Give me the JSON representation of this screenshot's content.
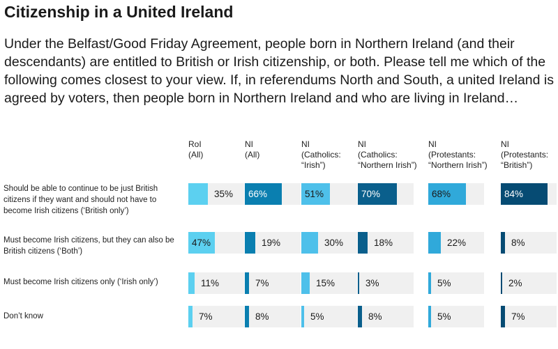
{
  "title": "Citizenship in a United Ireland",
  "subtitle": "Under the Belfast/Good Friday Agreement, people born in Northern Ireland (and their descendants) are entitled to British or Irish citizenship, or both. Please tell me which of the following comes closest to your view. If, in referendums North and South, a united Ireland is agreed by voters, then people born in Northern Ireland and who are living in Ireland…",
  "chart_data": {
    "type": "bar",
    "columns": [
      {
        "line1": "RoI",
        "line2": "(All)",
        "color": "#5cd0f0",
        "values": [
          35,
          47,
          11,
          7
        ]
      },
      {
        "line1": "NI",
        "line2": "(All)",
        "color": "#0a7fb0",
        "values": [
          66,
          19,
          7,
          8
        ]
      },
      {
        "line1": "NI",
        "line2": "(Catholics:",
        "line3": "“Irish”)",
        "color": "#4ec0ea",
        "values": [
          51,
          30,
          15,
          5
        ]
      },
      {
        "line1": "NI",
        "line2": "(Catholics:",
        "line3": "“Northern Irish”)",
        "color": "#0a5f8c",
        "values": [
          70,
          18,
          3,
          8
        ]
      },
      {
        "line1": "NI",
        "line2": "(Protestants:",
        "line3": "“Northern Irish”)",
        "color": "#30a9da",
        "values": [
          68,
          22,
          5,
          5
        ]
      },
      {
        "line1": "NI",
        "line2": "(Protestants:",
        "line3": "“British”)",
        "color": "#064b73",
        "values": [
          84,
          8,
          2,
          7
        ]
      }
    ],
    "rows": [
      "Should be able to continue to be just British citizens if they want and should not have to become Irish citizens (‘British only’)",
      "Must become Irish citizens, but they can also be British citizens (‘Both’)",
      "Must become Irish citizens only (‘Irish only’)",
      "Don’t know"
    ],
    "unit": "%",
    "ylim": [
      0,
      100
    ]
  }
}
